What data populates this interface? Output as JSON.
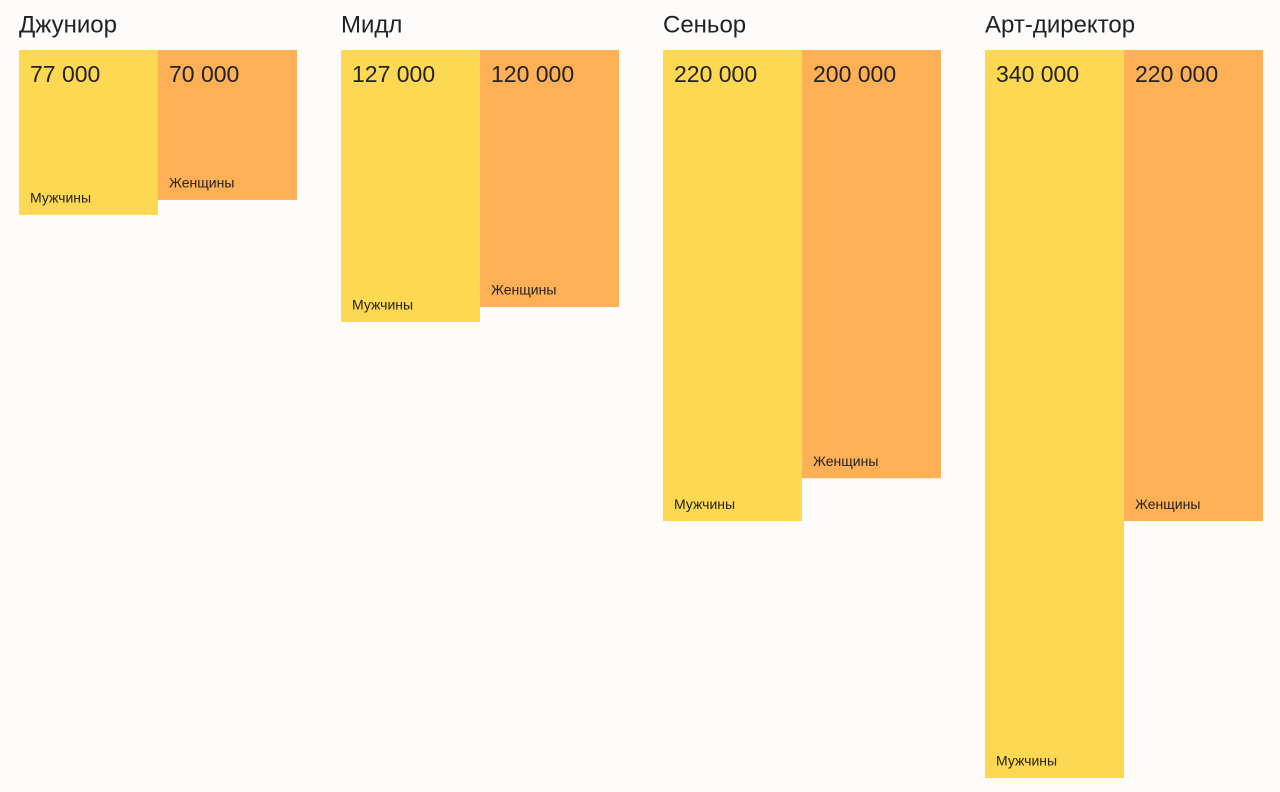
{
  "chart_data": {
    "type": "bar",
    "categories": [
      "Джуниор",
      "Мидл",
      "Сеньор",
      "Арт-директор"
    ],
    "series": [
      {
        "name": "Мужчины",
        "color": "#fdd853",
        "values": [
          77000,
          127000,
          220000,
          340000
        ],
        "value_labels": [
          "77 000",
          "127 000",
          "220 000",
          "340 000"
        ]
      },
      {
        "name": "Женщины",
        "color": "#fdb056",
        "values": [
          70000,
          120000,
          200000,
          220000
        ],
        "value_labels": [
          "70 000",
          "120 000",
          "200 000",
          "220 000"
        ]
      }
    ]
  }
}
